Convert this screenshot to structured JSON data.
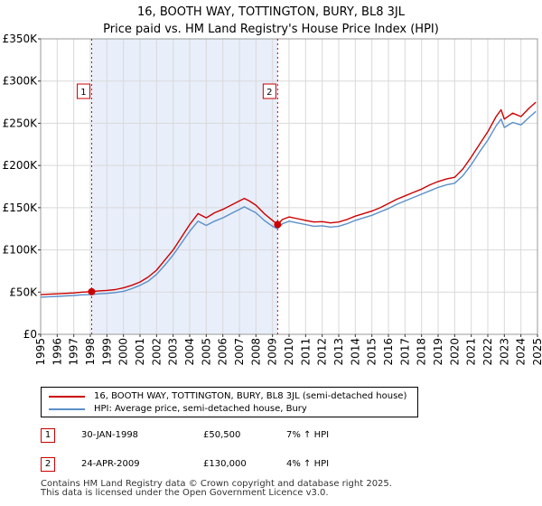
{
  "title_line1": "16, BOOTH WAY, TOTTINGTON, BURY, BL8 3JL",
  "title_line2": "Price paid vs. HM Land Registry's House Price Index (HPI)",
  "colors": {
    "property": "#cc0000",
    "hpi": "#5b8fc9",
    "shade": "#e8eefa",
    "grid": "#d9d9d9"
  },
  "chart_data": {
    "type": "line",
    "title": "16, BOOTH WAY, TOTTINGTON, BURY, BL8 3JL",
    "subtitle": "Price paid vs. HM Land Registry's House Price Index (HPI)",
    "xlabel": "",
    "ylabel": "",
    "xlim": [
      1995,
      2025
    ],
    "ylim": [
      0,
      350000
    ],
    "grid": true,
    "x_ticks": [
      "1995",
      "1996",
      "1997",
      "1998",
      "1999",
      "2000",
      "2001",
      "2002",
      "2003",
      "2004",
      "2005",
      "2006",
      "2007",
      "2008",
      "2009",
      "2010",
      "2011",
      "2012",
      "2013",
      "2014",
      "2015",
      "2016",
      "2017",
      "2018",
      "2019",
      "2020",
      "2021",
      "2022",
      "2023",
      "2024",
      "2025"
    ],
    "y_ticks": [
      {
        "value": 0,
        "label": "£0"
      },
      {
        "value": 50000,
        "label": "£50K"
      },
      {
        "value": 100000,
        "label": "£100K"
      },
      {
        "value": 150000,
        "label": "£150K"
      },
      {
        "value": 200000,
        "label": "£200K"
      },
      {
        "value": 250000,
        "label": "£250K"
      },
      {
        "value": 300000,
        "label": "£300K"
      },
      {
        "value": 350000,
        "label": "£350K"
      }
    ],
    "shaded_range": [
      1998.08,
      2009.31
    ],
    "series": [
      {
        "name": "16, BOOTH WAY, TOTTINGTON, BURY, BL8 3JL (semi-detached house)",
        "x": [
          1995,
          1995.5,
          1996,
          1996.5,
          1997,
          1997.5,
          1998.08,
          1998.5,
          1999,
          1999.5,
          2000,
          2000.5,
          2001,
          2001.5,
          2002,
          2002.5,
          2003,
          2003.5,
          2004,
          2004.5,
          2005,
          2005.5,
          2006,
          2006.5,
          2007,
          2007.3,
          2007.6,
          2008,
          2008.5,
          2009,
          2009.31,
          2009.6,
          2010,
          2010.5,
          2011,
          2011.5,
          2012,
          2012.5,
          2013,
          2013.5,
          2014,
          2014.5,
          2015,
          2015.5,
          2016,
          2016.5,
          2017,
          2017.5,
          2018,
          2018.5,
          2019,
          2019.5,
          2020,
          2020.5,
          2021,
          2021.5,
          2022,
          2022.5,
          2022.8,
          2023,
          2023.5,
          2024,
          2024.5,
          2024.9
        ],
        "values": [
          47000,
          47500,
          48000,
          48500,
          49000,
          50000,
          50500,
          51500,
          52000,
          53000,
          55000,
          58000,
          62000,
          68000,
          76000,
          88000,
          100000,
          115000,
          130000,
          143000,
          138000,
          144000,
          148000,
          153000,
          158000,
          161000,
          158000,
          153000,
          143000,
          135000,
          130000,
          136000,
          139000,
          137000,
          135000,
          133000,
          133500,
          132000,
          133000,
          136000,
          140000,
          143000,
          146000,
          150000,
          155000,
          160000,
          164000,
          168000,
          172000,
          177000,
          181000,
          184000,
          186000,
          196000,
          210000,
          225000,
          240000,
          258000,
          266000,
          255000,
          262000,
          258000,
          268000,
          275000
        ]
      },
      {
        "name": "HPI: Average price, semi-detached house, Bury",
        "x": [
          1995,
          1995.5,
          1996,
          1996.5,
          1997,
          1997.5,
          1998.08,
          1998.5,
          1999,
          1999.5,
          2000,
          2000.5,
          2001,
          2001.5,
          2002,
          2002.5,
          2003,
          2003.5,
          2004,
          2004.5,
          2005,
          2005.5,
          2006,
          2006.5,
          2007,
          2007.3,
          2007.6,
          2008,
          2008.5,
          2009,
          2009.31,
          2009.6,
          2010,
          2010.5,
          2011,
          2011.5,
          2012,
          2012.5,
          2013,
          2013.5,
          2014,
          2014.5,
          2015,
          2015.5,
          2016,
          2016.5,
          2017,
          2017.5,
          2018,
          2018.5,
          2019,
          2019.5,
          2020,
          2020.5,
          2021,
          2021.5,
          2022,
          2022.5,
          2022.8,
          2023,
          2023.5,
          2024,
          2024.5,
          2024.9
        ],
        "values": [
          44000,
          44500,
          45000,
          45500,
          46000,
          46800,
          47200,
          48000,
          48500,
          49500,
          51000,
          54000,
          58000,
          63000,
          71000,
          82000,
          94000,
          108000,
          122000,
          134000,
          129000,
          134000,
          138000,
          143000,
          148000,
          151000,
          148000,
          144000,
          135000,
          128000,
          125000,
          131000,
          134000,
          132000,
          130000,
          128000,
          128500,
          127000,
          128000,
          131000,
          135000,
          138000,
          141000,
          145000,
          149000,
          154000,
          158000,
          162000,
          166000,
          170000,
          174000,
          177000,
          179000,
          188000,
          201000,
          216000,
          230000,
          247000,
          255000,
          245000,
          251000,
          248000,
          257000,
          264000
        ]
      }
    ],
    "annotations": [
      {
        "label": "1",
        "x": 1998.08,
        "value": 50500
      },
      {
        "label": "2",
        "x": 2009.31,
        "value": 130000
      }
    ]
  },
  "legend": {
    "property_label": "16, BOOTH WAY, TOTTINGTON, BURY, BL8 3JL (semi-detached house)",
    "hpi_label": "HPI: Average price, semi-detached house, Bury"
  },
  "sales": [
    {
      "num": "1",
      "date": "30-JAN-1998",
      "price": "£50,500",
      "hpi": "7% ↑ HPI"
    },
    {
      "num": "2",
      "date": "24-APR-2009",
      "price": "£130,000",
      "hpi": "4% ↑ HPI"
    }
  ],
  "footer": {
    "line1": "Contains HM Land Registry data © Crown copyright and database right 2025.",
    "line2": "This data is licensed under the Open Government Licence v3.0."
  }
}
